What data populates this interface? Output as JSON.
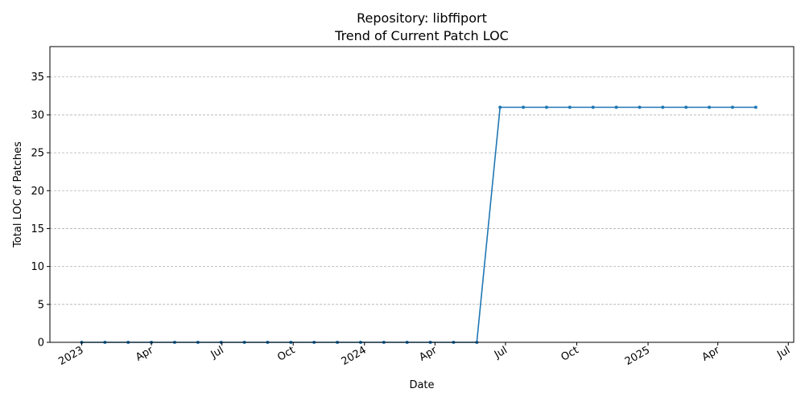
{
  "chart_data": {
    "type": "line",
    "title_line1": "Repository: libffiport",
    "title_line2": "Trend of Current Patch LOC",
    "xlabel": "Date",
    "ylabel": "Total LOC of Patches",
    "ylim": [
      0,
      39
    ],
    "yticks": [
      0,
      5,
      10,
      15,
      20,
      25,
      30,
      35
    ],
    "xlim": [
      "2022-11-21",
      "2025-07-08"
    ],
    "xticks": [
      {
        "date": "2023-01-01",
        "label": "2023"
      },
      {
        "date": "2023-04-01",
        "label": "Apr"
      },
      {
        "date": "2023-07-01",
        "label": "Jul"
      },
      {
        "date": "2023-10-01",
        "label": "Oct"
      },
      {
        "date": "2024-01-01",
        "label": "2024"
      },
      {
        "date": "2024-04-01",
        "label": "Apr"
      },
      {
        "date": "2024-07-01",
        "label": "Jul"
      },
      {
        "date": "2024-10-01",
        "label": "Oct"
      },
      {
        "date": "2025-01-01",
        "label": "2025"
      },
      {
        "date": "2025-04-01",
        "label": "Apr"
      },
      {
        "date": "2025-07-01",
        "label": "Jul"
      }
    ],
    "grid": "horizontal dashed",
    "series": [
      {
        "color": "#1f77b4",
        "x": [
          "2023-01-01",
          "2023-01-31",
          "2023-03-02",
          "2023-04-01",
          "2023-05-01",
          "2023-05-31",
          "2023-06-30",
          "2023-07-30",
          "2023-08-29",
          "2023-09-28",
          "2023-10-28",
          "2023-11-27",
          "2023-12-27",
          "2024-01-26",
          "2024-02-25",
          "2024-03-26",
          "2024-04-25",
          "2024-05-25",
          "2024-06-24",
          "2024-07-24",
          "2024-08-23",
          "2024-09-22",
          "2024-10-22",
          "2024-11-21",
          "2024-12-21",
          "2025-01-20",
          "2025-02-19",
          "2025-03-21",
          "2025-04-20",
          "2025-05-20"
        ],
        "values": [
          0,
          0,
          0,
          0,
          0,
          0,
          0,
          0,
          0,
          0,
          0,
          0,
          0,
          0,
          0,
          0,
          0,
          0,
          31,
          31,
          31,
          31,
          31,
          31,
          31,
          31,
          31,
          31,
          31,
          31
        ]
      }
    ]
  }
}
